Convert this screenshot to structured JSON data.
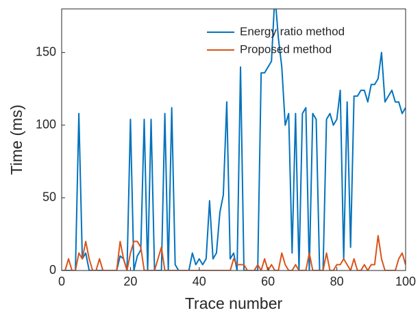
{
  "chart_data": {
    "type": "line",
    "xlabel": "Trace number",
    "ylabel": "Time (ms)",
    "x": [
      0,
      1,
      2,
      3,
      4,
      5,
      6,
      7,
      8,
      9,
      10,
      11,
      12,
      13,
      14,
      15,
      16,
      17,
      18,
      19,
      20,
      21,
      22,
      23,
      24,
      25,
      26,
      27,
      28,
      29,
      30,
      31,
      32,
      33,
      34,
      35,
      36,
      37,
      38,
      39,
      40,
      41,
      42,
      43,
      44,
      45,
      46,
      47,
      48,
      49,
      50,
      51,
      52,
      53,
      54,
      55,
      56,
      57,
      58,
      59,
      60,
      61,
      62,
      63,
      64,
      65,
      66,
      67,
      68,
      69,
      70,
      71,
      72,
      73,
      74,
      75,
      76,
      77,
      78,
      79,
      80,
      81,
      82,
      83,
      84,
      85,
      86,
      87,
      88,
      89,
      90,
      91,
      92,
      93,
      94,
      95,
      96,
      97,
      98,
      99,
      100
    ],
    "series": [
      {
        "name": "Energy ratio method",
        "color": "#0072bd",
        "values": [
          0,
          0,
          0,
          0,
          0,
          108,
          8,
          12,
          0,
          0,
          0,
          0,
          0,
          0,
          0,
          0,
          0,
          10,
          8,
          0,
          104,
          0,
          10,
          14,
          104,
          0,
          104,
          0,
          0,
          0,
          108,
          0,
          112,
          4,
          0,
          0,
          0,
          0,
          12,
          4,
          8,
          4,
          8,
          48,
          8,
          12,
          40,
          52,
          116,
          8,
          12,
          0,
          140,
          0,
          0,
          0,
          0,
          0,
          136,
          136,
          140,
          144,
          190,
          160,
          140,
          100,
          108,
          12,
          108,
          0,
          108,
          112,
          0,
          108,
          104,
          0,
          0,
          104,
          108,
          100,
          104,
          124,
          8,
          116,
          16,
          120,
          120,
          124,
          124,
          116,
          128,
          128,
          132,
          150,
          116,
          120,
          124,
          116,
          116,
          108,
          112
        ]
      },
      {
        "name": "Proposed method",
        "color": "#d95319",
        "values": [
          0,
          0,
          8,
          0,
          0,
          12,
          8,
          20,
          8,
          0,
          0,
          8,
          0,
          0,
          0,
          0,
          0,
          20,
          8,
          0,
          12,
          20,
          20,
          16,
          0,
          0,
          0,
          0,
          8,
          16,
          0,
          0,
          0,
          0,
          0,
          0,
          0,
          0,
          0,
          0,
          0,
          0,
          0,
          0,
          0,
          0,
          0,
          0,
          0,
          0,
          8,
          4,
          4,
          4,
          0,
          0,
          0,
          4,
          0,
          8,
          0,
          4,
          0,
          0,
          12,
          4,
          0,
          0,
          4,
          0,
          0,
          0,
          12,
          0,
          0,
          0,
          0,
          12,
          0,
          0,
          4,
          4,
          8,
          4,
          0,
          8,
          0,
          0,
          4,
          0,
          4,
          4,
          24,
          8,
          0,
          0,
          0,
          0,
          8,
          12,
          4
        ]
      }
    ],
    "xlim": [
      0,
      100
    ],
    "xticks": [
      0,
      20,
      40,
      60,
      80,
      100
    ],
    "ylim": [
      0,
      180
    ],
    "yticks": [
      0,
      50,
      100,
      150
    ],
    "legend": "upper right"
  }
}
